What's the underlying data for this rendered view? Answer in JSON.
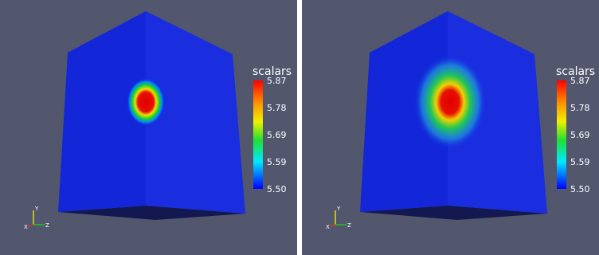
{
  "panels": [
    {
      "legend": {
        "title": "scalars",
        "ticks": [
          "5.87",
          "5.78",
          "5.69",
          "5.59",
          "5.50"
        ]
      },
      "axes": {
        "x": "X",
        "y": "Y",
        "z": "Z"
      }
    },
    {
      "legend": {
        "title": "scalars",
        "ticks": [
          "5.87",
          "5.78",
          "5.69",
          "5.59",
          "5.50"
        ]
      },
      "axes": {
        "x": "X",
        "y": "Y",
        "z": "Z"
      }
    }
  ]
}
